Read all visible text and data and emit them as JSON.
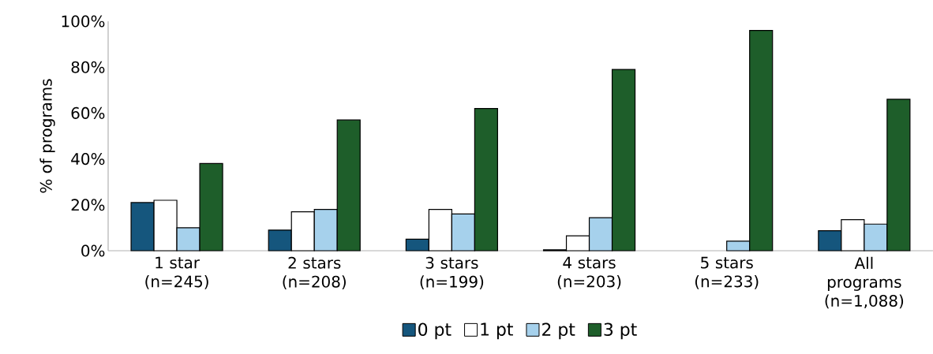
{
  "chart_data": {
    "type": "bar",
    "ylabel": "% of programs",
    "categories": [
      "1 star (n=245)",
      "2 stars (n=208)",
      "3 stars (n=199)",
      "4 stars (n=203)",
      "5 stars (n=233)",
      "All programs (n=1,088)"
    ],
    "series": [
      {
        "name": "0 pt",
        "color": "#15567d",
        "values": [
          21,
          9,
          5,
          0.4,
          null,
          8.7
        ]
      },
      {
        "name": "1 pt",
        "color": "#ffffff",
        "values": [
          22,
          17,
          18,
          6.5,
          null,
          13.5
        ]
      },
      {
        "name": "2 pt",
        "color": "#a6d1ec",
        "values": [
          10,
          18,
          16,
          14.4,
          4.2,
          11.6
        ]
      },
      {
        "name": "3 pt",
        "color": "#1e5e2a",
        "values": [
          38,
          57,
          62,
          79,
          96,
          66
        ]
      }
    ],
    "ylim": [
      0,
      100
    ],
    "yticks": [
      {
        "value": 0,
        "label": "0%"
      },
      {
        "value": 20,
        "label": "20%"
      },
      {
        "value": 40,
        "label": "40%"
      },
      {
        "value": 60,
        "label": "60%"
      },
      {
        "value": 80,
        "label": "80%"
      },
      {
        "value": 100,
        "label": "100%"
      }
    ],
    "grid": false,
    "legend": "bottom"
  }
}
